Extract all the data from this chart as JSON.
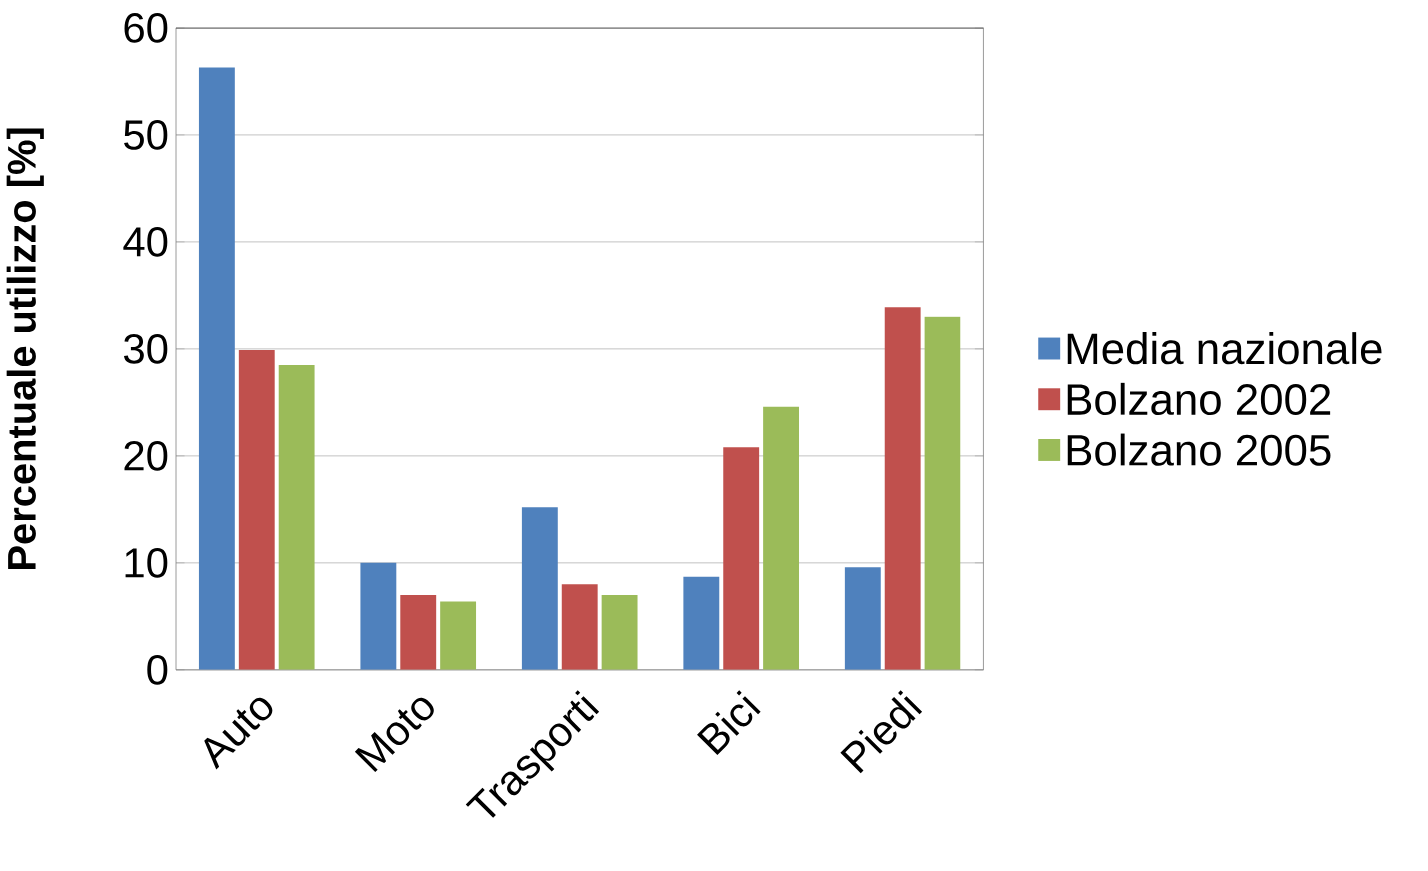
{
  "chart_data": {
    "type": "bar",
    "ylabel": "Percentuale utilizzo [%]",
    "categories": [
      "Auto",
      "Moto",
      "Trasporti",
      "Bici",
      "Piedi"
    ],
    "series": [
      {
        "name": "Media nazionale",
        "color": "#4f81bd",
        "values": [
          56.3,
          10.0,
          15.2,
          8.7,
          9.6
        ]
      },
      {
        "name": "Bolzano 2002",
        "color": "#c0504d",
        "values": [
          29.9,
          7.0,
          8.0,
          20.8,
          33.9
        ]
      },
      {
        "name": "Bolzano 2005",
        "color": "#9bbb59",
        "values": [
          28.5,
          6.4,
          7.0,
          24.6,
          33.0
        ]
      }
    ],
    "ylim": [
      0,
      60
    ],
    "yticks": [
      0,
      10,
      20,
      30,
      40,
      50,
      60
    ],
    "grid": "y",
    "legend": "right"
  }
}
